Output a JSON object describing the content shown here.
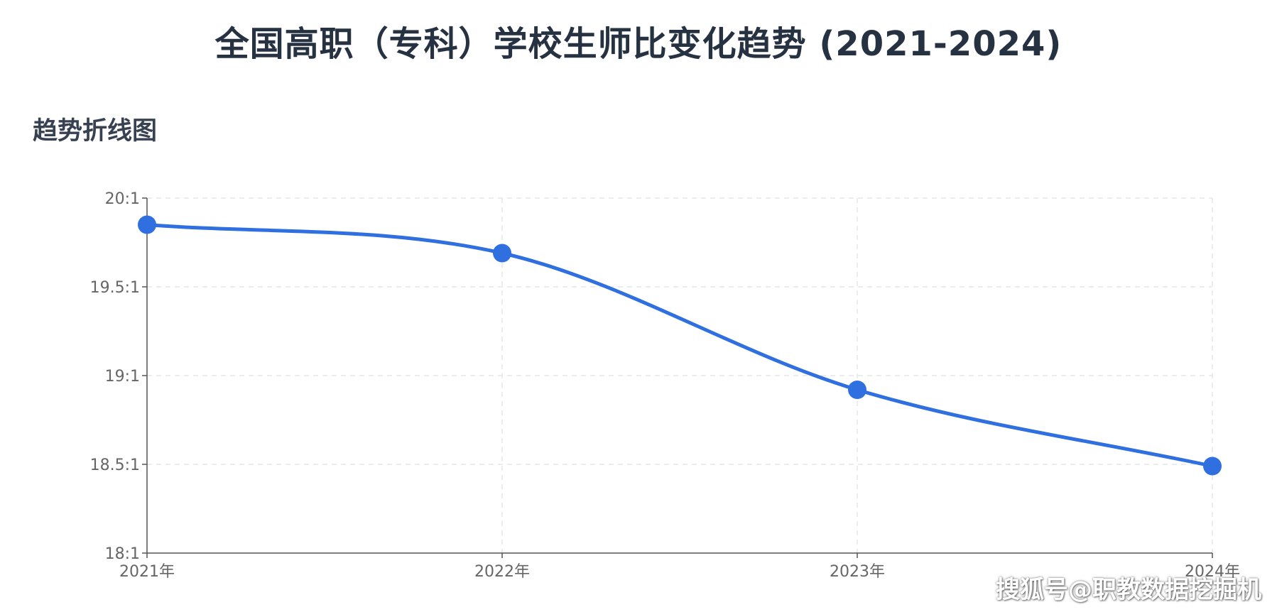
{
  "title": "全国高职（专科）学校生师比变化趋势 (2021-2024)",
  "section_title": "趋势折线图",
  "watermark": "搜狐号@职教数据挖掘机",
  "colors": {
    "line": "#2F6FDF",
    "point": "#2F6FDF",
    "grid": "#E3E6EB",
    "axis": "#555555",
    "tick_text": "#666666"
  },
  "chart_data": {
    "type": "line",
    "categories": [
      "2021年",
      "2022年",
      "2023年",
      "2024年"
    ],
    "y_tick_labels": [
      "18:1",
      "18.5:1",
      "19:1",
      "19.5:1",
      "20:1"
    ],
    "ylim": [
      18,
      20
    ],
    "y_ticks": [
      18,
      18.5,
      19,
      19.5,
      20
    ],
    "grid": true,
    "smooth": true,
    "series": [
      {
        "values": [
          19.85,
          19.69,
          18.92,
          18.49
        ]
      }
    ]
  }
}
